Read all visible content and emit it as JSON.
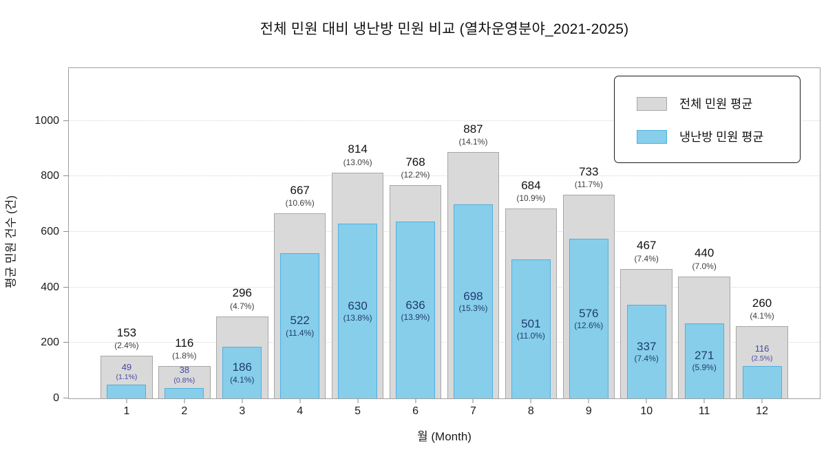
{
  "title": "전체 민원 대비 냉난방 민원 비교 (열차운영분야_2021-2025)",
  "axes": {
    "ylabel": "평균 민원 건수 (건)",
    "xlabel": "월 (Month)",
    "yticks": [
      0,
      200,
      400,
      600,
      800,
      1000
    ]
  },
  "legend": {
    "total_label": "전체 민원 평균",
    "hvac_label": "냉난방 민원 평균"
  },
  "colors": {
    "total_fill": "#d9d9d9",
    "total_edge": "#a6a6a6",
    "hvac_fill": "#87ceeb",
    "hvac_edge": "#4fafdd",
    "hvac_text": "#1e3c6e",
    "hvac_text_outside": "#4646a8",
    "grid": "#d4d4d4",
    "spine": "#9f9f9f"
  },
  "chart_data": {
    "type": "bar",
    "title": "전체 민원 대비 냉난방 민원 비교 (열차운영분야_2021-2025)",
    "xlabel": "월 (Month)",
    "ylabel": "평균 민원 건수 (건)",
    "categories": [
      1,
      2,
      3,
      4,
      5,
      6,
      7,
      8,
      9,
      10,
      11,
      12
    ],
    "ylim": [
      0,
      1195
    ],
    "grid": "horizontal-dotted",
    "legend_position": "upper right",
    "series": [
      {
        "name": "전체 민원 평균",
        "values": [
          153,
          116,
          296,
          667,
          814,
          768,
          887,
          684,
          733,
          467,
          440,
          260
        ],
        "pct_labels": [
          "(2.4%)",
          "(1.8%)",
          "(4.7%)",
          "(10.6%)",
          "(13.0%)",
          "(12.2%)",
          "(14.1%)",
          "(10.9%)",
          "(11.7%)",
          "(7.4%)",
          "(7.0%)",
          "(4.1%)"
        ]
      },
      {
        "name": "냉난방 민원 평균",
        "values": [
          49,
          38,
          186,
          522,
          630,
          636,
          698,
          501,
          576,
          337,
          271,
          116
        ],
        "pct_labels": [
          "(1.1%)",
          "(0.8%)",
          "(4.1%)",
          "(11.4%)",
          "(13.8%)",
          "(13.9%)",
          "(15.3%)",
          "(11.0%)",
          "(12.6%)",
          "(7.4%)",
          "(5.9%)",
          "(2.5%)"
        ]
      }
    ]
  }
}
